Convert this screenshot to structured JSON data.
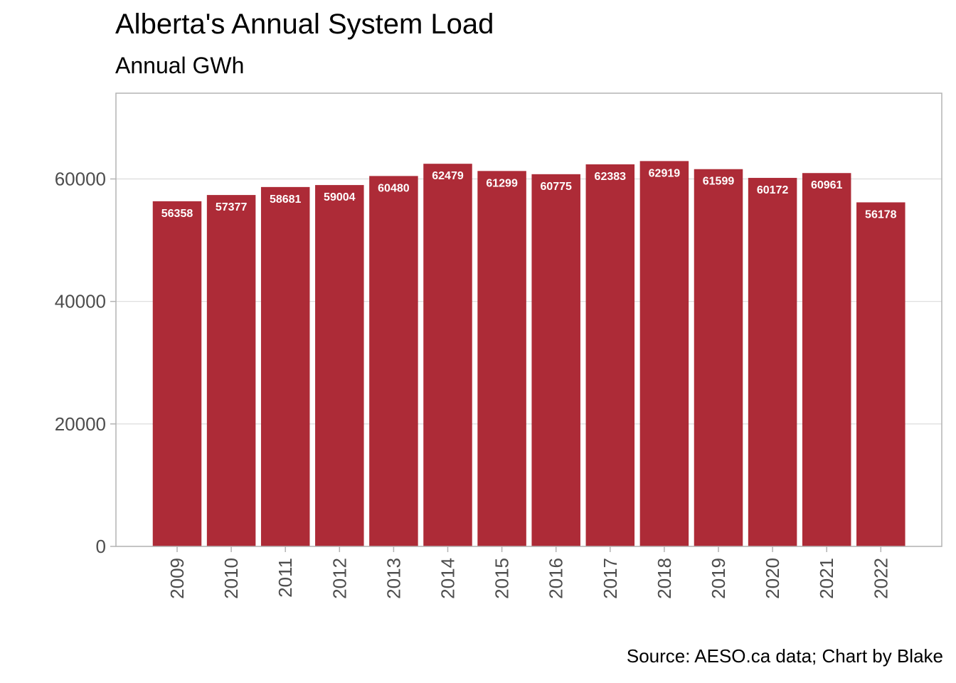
{
  "title": "Alberta's Annual System Load",
  "subtitle": "Annual GWh",
  "caption": "Source: AESO.ca data; Chart by Blake",
  "colors": {
    "bar": "#ad2b37",
    "panel_border": "#b3b3b3",
    "grid": "#dcdcdc",
    "label": "#ffffff",
    "tick_text": "#4d4d4d"
  },
  "chart_data": {
    "type": "bar",
    "title": "Alberta's Annual System Load",
    "subtitle": "Annual GWh",
    "xlabel": "",
    "ylabel": "",
    "categories": [
      "2009",
      "2010",
      "2011",
      "2012",
      "2013",
      "2014",
      "2015",
      "2016",
      "2017",
      "2018",
      "2019",
      "2020",
      "2021",
      "2022"
    ],
    "values": [
      56358,
      57377,
      58681,
      59004,
      60480,
      62479,
      61299,
      60775,
      62383,
      62919,
      61599,
      60172,
      60961,
      56178
    ],
    "ylim": [
      0,
      74000
    ],
    "yticks": [
      0,
      20000,
      40000,
      60000
    ],
    "grid": true,
    "data_labels": true
  }
}
